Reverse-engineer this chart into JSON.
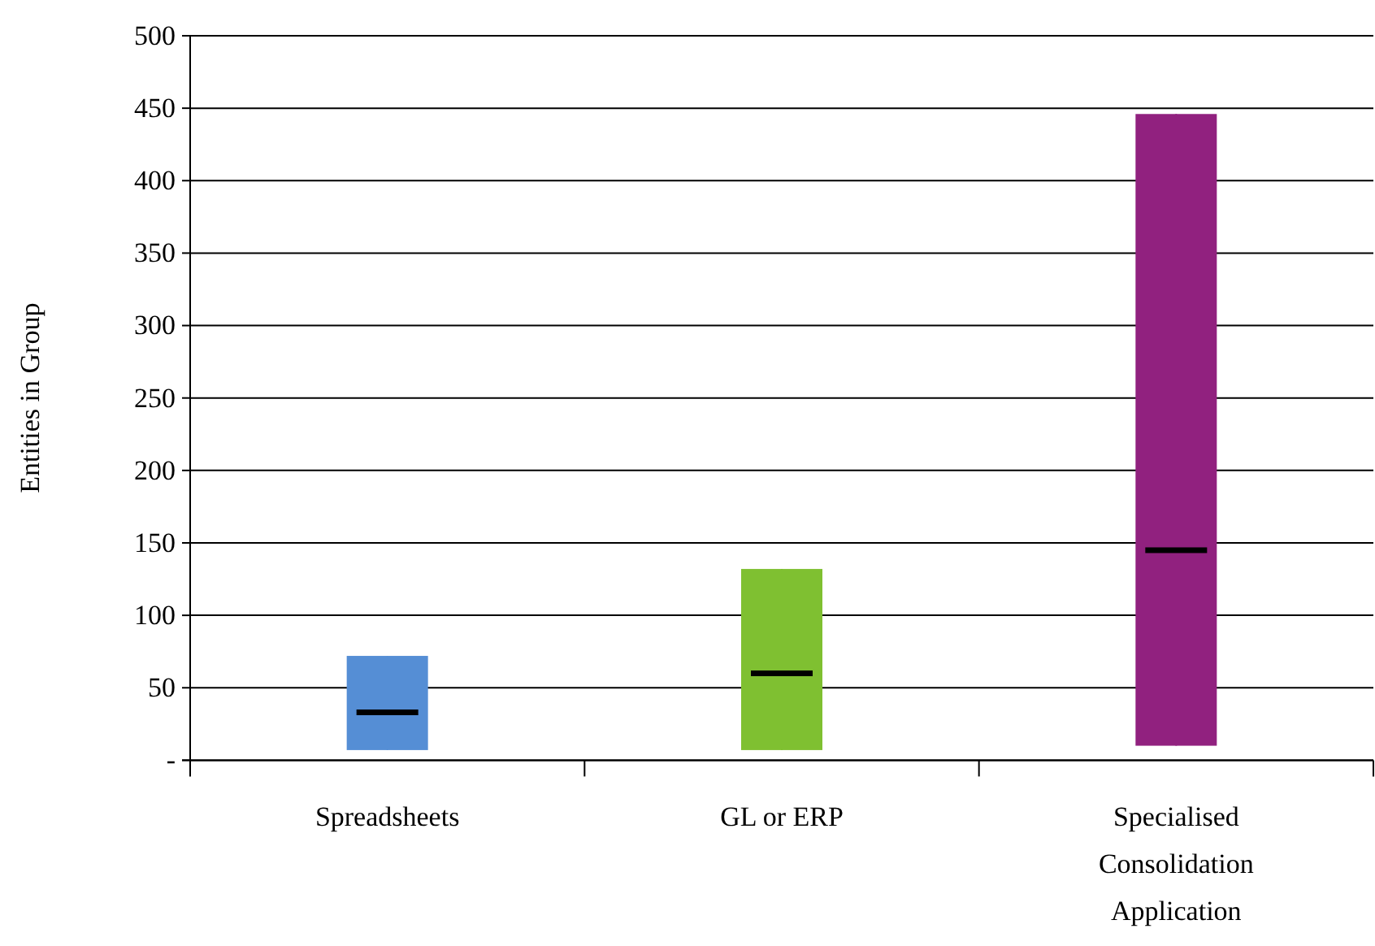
{
  "chart_data": {
    "type": "box",
    "ylabel": "Entities in Group",
    "categories": [
      "Spreadsheets",
      "GL or ERP",
      "Specialised Consolidation Application"
    ],
    "boxes": [
      {
        "low": 7,
        "q1": 7,
        "median": 33,
        "q3": 72,
        "high": 72
      },
      {
        "low": 7,
        "q1": 7,
        "median": 60,
        "q3": 132,
        "high": 132
      },
      {
        "low": 10,
        "q1": 10,
        "median": 145,
        "q3": 446,
        "high": 446
      }
    ],
    "colors": [
      "#558ed5",
      "#7fc031",
      "#91217f"
    ],
    "ylim": [
      0,
      500
    ],
    "yticks": [
      {
        "value": 0,
        "label": "-"
      },
      50,
      100,
      150,
      200,
      250,
      300,
      350,
      400,
      450,
      500
    ],
    "grid": "y"
  }
}
